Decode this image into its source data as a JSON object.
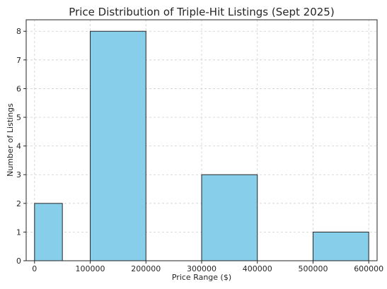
{
  "chart_data": {
    "type": "bar",
    "title": "Price Distribution of Triple-Hit Listings (Sept 2025)",
    "xlabel": "Price Range ($)",
    "ylabel": "Number of Listings",
    "xlim": [
      -15000,
      615000
    ],
    "ylim": [
      0,
      8.4
    ],
    "grid": true,
    "x_ticks": [
      0,
      100000,
      200000,
      300000,
      400000,
      500000,
      600000
    ],
    "y_ticks": [
      0,
      1,
      2,
      3,
      4,
      5,
      6,
      7,
      8
    ],
    "bins": [
      {
        "start": 0,
        "end": 50000,
        "value": 2
      },
      {
        "start": 50000,
        "end": 100000,
        "value": 0
      },
      {
        "start": 100000,
        "end": 200000,
        "value": 8
      },
      {
        "start": 200000,
        "end": 300000,
        "value": 0
      },
      {
        "start": 300000,
        "end": 400000,
        "value": 3
      },
      {
        "start": 400000,
        "end": 500000,
        "value": 0
      },
      {
        "start": 500000,
        "end": 600000,
        "value": 1
      }
    ]
  }
}
